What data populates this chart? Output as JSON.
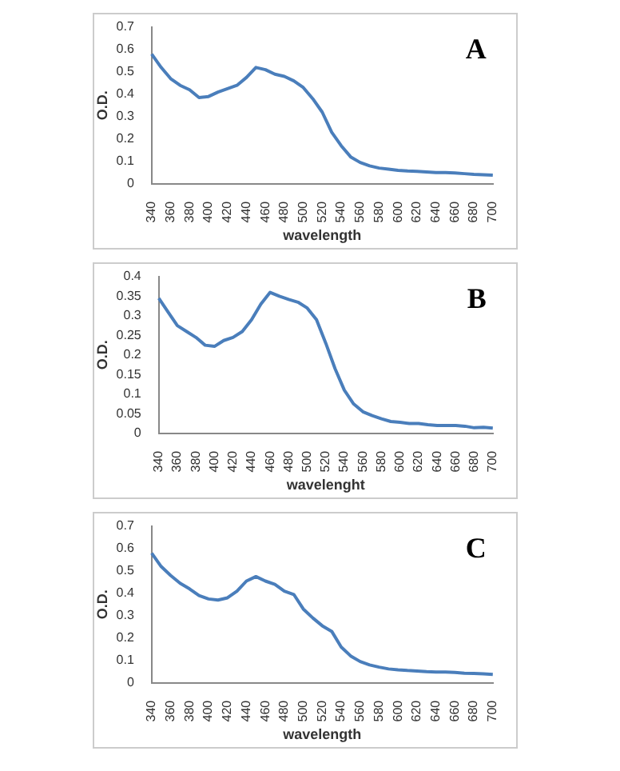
{
  "chart_data": [
    {
      "type": "line",
      "annotations": [
        "A"
      ],
      "xlabel": "wavelength",
      "ylabel": "O.D.",
      "categories": [
        "340",
        null,
        "360",
        null,
        "380",
        null,
        "400",
        null,
        "420",
        null,
        "440",
        null,
        "460",
        null,
        "480",
        null,
        "500",
        null,
        "520",
        null,
        "540",
        null,
        "560",
        null,
        "580",
        null,
        "600",
        null,
        "620",
        null,
        "640",
        null,
        "660",
        null,
        "680",
        null,
        "700"
      ],
      "series": [
        {
          "color": "#4a7ebb",
          "values": [
            0.58,
            0.52,
            0.47,
            0.44,
            0.42,
            0.385,
            0.39,
            0.41,
            0.425,
            0.44,
            0.475,
            0.52,
            0.51,
            0.49,
            0.48,
            0.46,
            0.43,
            0.38,
            0.32,
            0.23,
            0.17,
            0.12,
            0.095,
            0.08,
            0.07,
            0.065,
            0.06,
            0.057,
            0.055,
            0.053,
            0.05,
            0.05,
            0.048,
            0.045,
            0.042,
            0.04,
            0.038
          ]
        }
      ],
      "ylim": [
        0,
        0.7
      ],
      "yticks": [
        0,
        0.1,
        0.2,
        0.3,
        0.4,
        0.5,
        0.6,
        0.7
      ],
      "grid": false,
      "legend": false,
      "marker": "none",
      "line_style": "solid"
    },
    {
      "type": "line",
      "annotations": [
        "B"
      ],
      "xlabel": "wavelenght",
      "ylabel": "O.D.",
      "categories": [
        "340",
        null,
        "360",
        null,
        "380",
        null,
        "400",
        null,
        "420",
        null,
        "440",
        null,
        "460",
        null,
        "480",
        null,
        "500",
        null,
        "520",
        null,
        "540",
        null,
        "560",
        null,
        "580",
        null,
        "600",
        null,
        "620",
        null,
        "640",
        null,
        "660",
        null,
        "680",
        null,
        "700"
      ],
      "series": [
        {
          "color": "#4a7ebb",
          "values": [
            0.345,
            0.31,
            0.275,
            0.26,
            0.245,
            0.225,
            0.222,
            0.237,
            0.245,
            0.26,
            0.29,
            0.33,
            0.36,
            0.35,
            0.342,
            0.335,
            0.32,
            0.29,
            0.23,
            0.165,
            0.11,
            0.075,
            0.055,
            0.045,
            0.037,
            0.03,
            0.028,
            0.025,
            0.025,
            0.022,
            0.02,
            0.02,
            0.02,
            0.018,
            0.014,
            0.015,
            0.013
          ]
        }
      ],
      "ylim": [
        0,
        0.4
      ],
      "yticks": [
        0,
        0.05,
        0.1,
        0.15,
        0.2,
        0.25,
        0.3,
        0.35,
        0.4
      ],
      "grid": false,
      "legend": false,
      "marker": "none",
      "line_style": "solid"
    },
    {
      "type": "line",
      "annotations": [
        "C"
      ],
      "xlabel": "wavelength",
      "ylabel": "O.D.",
      "categories": [
        "340",
        null,
        "360",
        null,
        "380",
        null,
        "400",
        null,
        "420",
        null,
        "440",
        null,
        "460",
        null,
        "480",
        null,
        "500",
        null,
        "520",
        null,
        "540",
        null,
        "560",
        null,
        "580",
        null,
        "600",
        null,
        "620",
        null,
        "640",
        null,
        "660",
        null,
        "680",
        null,
        "700"
      ],
      "series": [
        {
          "color": "#4a7ebb",
          "values": [
            0.58,
            0.52,
            0.48,
            0.445,
            0.42,
            0.39,
            0.375,
            0.37,
            0.38,
            0.41,
            0.455,
            0.475,
            0.455,
            0.44,
            0.41,
            0.395,
            0.33,
            0.29,
            0.255,
            0.23,
            0.16,
            0.12,
            0.095,
            0.08,
            0.07,
            0.062,
            0.058,
            0.055,
            0.053,
            0.05,
            0.048,
            0.048,
            0.046,
            0.043,
            0.042,
            0.04,
            0.037
          ]
        }
      ],
      "ylim": [
        0,
        0.7
      ],
      "yticks": [
        0,
        0.1,
        0.2,
        0.3,
        0.4,
        0.5,
        0.6,
        0.7
      ],
      "grid": false,
      "legend": false,
      "marker": "none",
      "line_style": "solid"
    }
  ]
}
